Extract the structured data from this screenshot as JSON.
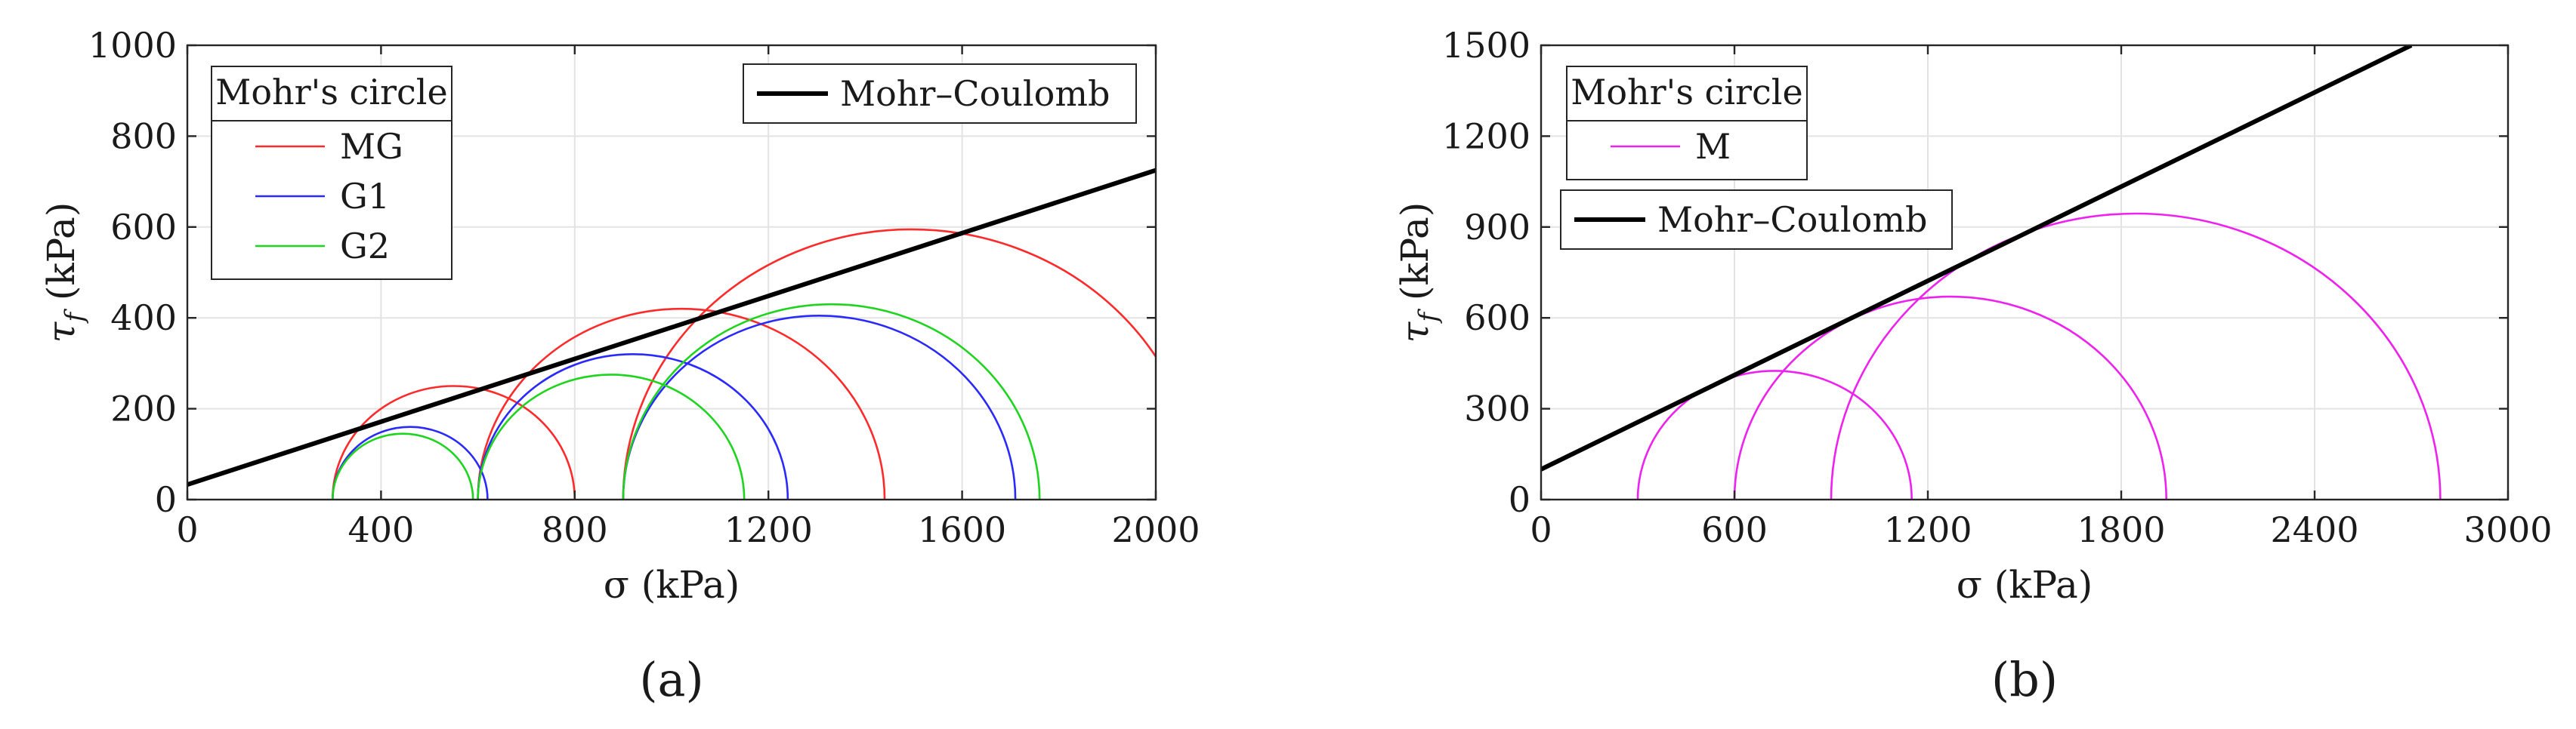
{
  "chart_data": [
    {
      "type": "line",
      "panel_label": "(a)",
      "xlabel": "σ (kPa)",
      "ylabel": "τ_f (kPa)",
      "ylabel_main": "τ",
      "ylabel_sub": "f",
      "ylabel_unit": "(kPa)",
      "xlim": [
        0,
        2000
      ],
      "ylim": [
        0,
        1000
      ],
      "xticks": [
        0,
        400,
        800,
        1200,
        1600,
        2000
      ],
      "yticks": [
        0,
        200,
        400,
        600,
        800,
        1000
      ],
      "xtick_labels": [
        "0",
        "400",
        "800",
        "1200",
        "1600",
        "2000"
      ],
      "ytick_labels": [
        "0",
        "200",
        "400",
        "600",
        "800",
        "1000"
      ],
      "grid": true,
      "circle_legend": {
        "title": "Mohr's circle",
        "placement": "top-left",
        "entries": [
          {
            "label": "MG",
            "color": "#ff2a2a"
          },
          {
            "label": "G1",
            "color": "#2a2aff"
          },
          {
            "label": "G2",
            "color": "#1fd41f"
          }
        ]
      },
      "line_legend": {
        "placement": "top-right",
        "entries": [
          {
            "label": "Mohr–Coulomb",
            "color": "#000000"
          }
        ]
      },
      "series": [
        {
          "name": "MG",
          "color": "#ff2a2a",
          "circles": [
            {
              "sigma3": 300,
              "sigma1": 800
            },
            {
              "sigma3": 600,
              "sigma1": 1440
            },
            {
              "sigma3": 900,
              "sigma1": 2090
            }
          ]
        },
        {
          "name": "G1",
          "color": "#2a2aff",
          "circles": [
            {
              "sigma3": 300,
              "sigma1": 620
            },
            {
              "sigma3": 600,
              "sigma1": 1240
            },
            {
              "sigma3": 900,
              "sigma1": 1710
            }
          ]
        },
        {
          "name": "G2",
          "color": "#1fd41f",
          "circles": [
            {
              "sigma3": 300,
              "sigma1": 590
            },
            {
              "sigma3": 600,
              "sigma1": 1150
            },
            {
              "sigma3": 900,
              "sigma1": 1760
            }
          ]
        }
      ],
      "mohr_coulomb": {
        "name": "Mohr–Coulomb",
        "color": "#000000",
        "x": [
          0,
          2000
        ],
        "y": [
          33,
          725
        ]
      }
    },
    {
      "type": "line",
      "panel_label": "(b)",
      "xlabel": "σ (kPa)",
      "ylabel": "τ_f (kPa)",
      "ylabel_main": "τ",
      "ylabel_sub": "f",
      "ylabel_unit": "(kPa)",
      "xlim": [
        0,
        3000
      ],
      "ylim": [
        0,
        1500
      ],
      "xticks": [
        0,
        600,
        1200,
        1800,
        2400,
        3000
      ],
      "yticks": [
        0,
        300,
        600,
        900,
        1200,
        1500
      ],
      "xtick_labels": [
        "0",
        "600",
        "1200",
        "1800",
        "2400",
        "3000"
      ],
      "ytick_labels": [
        "0",
        "300",
        "600",
        "900",
        "1200",
        "1500"
      ],
      "grid": true,
      "circle_legend": {
        "title": "Mohr's circle",
        "placement": "top-left",
        "entries": [
          {
            "label": "M",
            "color": "#ee22ee"
          }
        ]
      },
      "line_legend": {
        "placement": "upper-left",
        "entries": [
          {
            "label": "Mohr–Coulomb",
            "color": "#000000"
          }
        ]
      },
      "series": [
        {
          "name": "M",
          "color": "#ee22ee",
          "circles": [
            {
              "sigma3": 300,
              "sigma1": 1150
            },
            {
              "sigma3": 600,
              "sigma1": 1940
            },
            {
              "sigma3": 900,
              "sigma1": 2790
            }
          ]
        }
      ],
      "mohr_coulomb": {
        "name": "Mohr–Coulomb",
        "color": "#000000",
        "x": [
          0,
          2700
        ],
        "y": [
          100,
          1500
        ]
      }
    }
  ]
}
